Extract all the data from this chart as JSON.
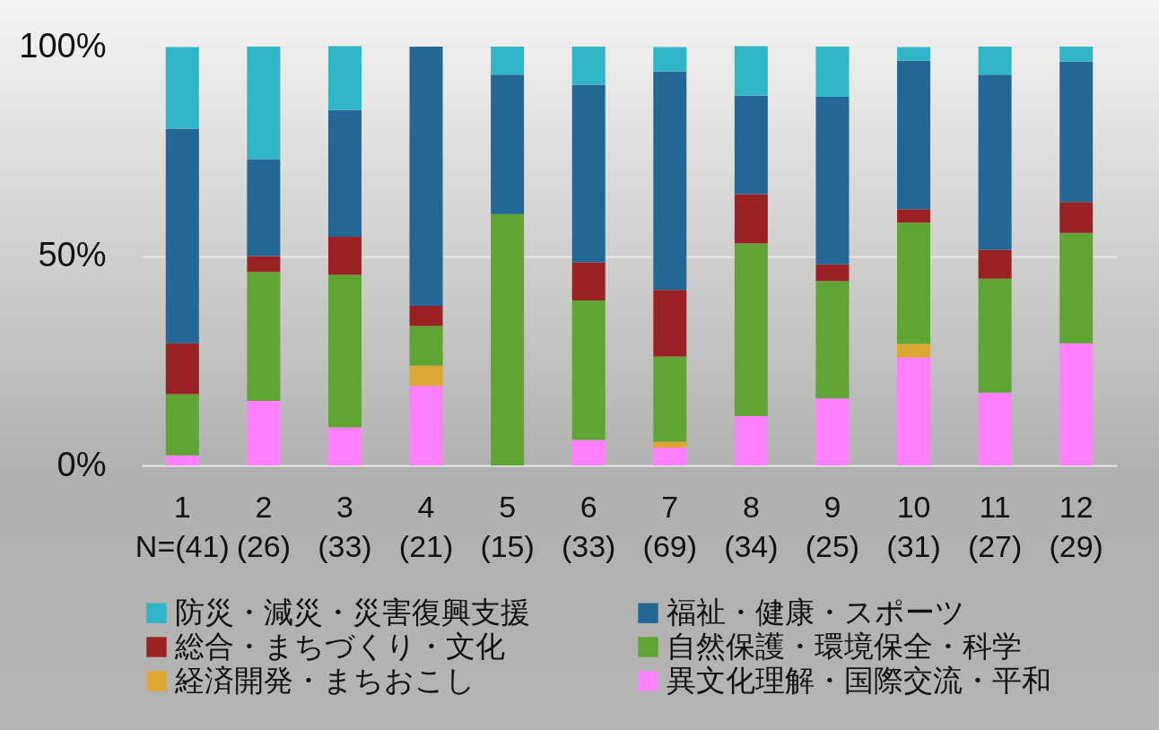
{
  "chart_data": {
    "type": "bar",
    "stacked": true,
    "categories": [
      "1\nN=(41)",
      "2\n(26)",
      "3\n(33)",
      "4\n(21)",
      "5\n(15)",
      "6\n(33)",
      "7\n(69)",
      "8\n(34)",
      "9\n(25)",
      "10\n(31)",
      "11\n(27)",
      "12\n(29)"
    ],
    "series": [
      {
        "name": "異文化理解・国際交流・平和",
        "color": "#ff80ff",
        "values": [
          2.4,
          15.4,
          9.1,
          19.0,
          0,
          6.1,
          4.3,
          11.8,
          16.0,
          25.8,
          17.4,
          29.2
        ]
      },
      {
        "name": "経済開発・まちおこし",
        "color": "#dca832",
        "values": [
          0,
          0,
          0,
          4.8,
          0,
          0,
          1.4,
          0,
          0,
          3.2,
          0,
          0
        ]
      },
      {
        "name": "自然保護・環境保全・科学",
        "color": "#5ea533",
        "values": [
          14.6,
          30.8,
          36.4,
          9.5,
          60.0,
          33.3,
          20.3,
          41.2,
          28.0,
          29.0,
          27.2,
          26.3
        ]
      },
      {
        "name": "総合・まちづくり・文化",
        "color": "#9a2222",
        "values": [
          12.2,
          3.8,
          9.1,
          4.8,
          0,
          9.1,
          15.9,
          11.8,
          4.0,
          3.2,
          6.9,
          7.4
        ]
      },
      {
        "name": "福祉・健康・スポーツ",
        "color": "#226796",
        "values": [
          51.2,
          23.1,
          30.3,
          61.9,
          33.3,
          42.4,
          52.2,
          23.5,
          40.0,
          35.5,
          41.8,
          33.5
        ]
      },
      {
        "name": "防災・減災・災害復興支援",
        "color": "#2fb5c8",
        "values": [
          19.5,
          26.9,
          15.2,
          0,
          6.7,
          9.1,
          5.8,
          11.8,
          12.0,
          3.2,
          6.7,
          3.6
        ]
      }
    ],
    "ylim": [
      0,
      100
    ],
    "yticks": [
      {
        "value": 0,
        "label": "0%"
      },
      {
        "value": 50,
        "label": "50%"
      },
      {
        "value": 100,
        "label": "100%"
      }
    ],
    "grid": "y",
    "legend": "bottom"
  }
}
